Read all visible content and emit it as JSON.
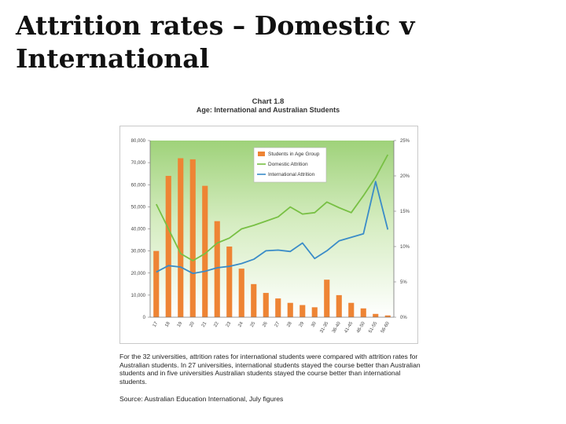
{
  "slide": {
    "title": "Attrition rates – Domestic v International"
  },
  "chart_data": {
    "type": "bar+line",
    "chart_number": "Chart 1.8",
    "title": "Age: International and Australian Students",
    "categories": [
      "17",
      "18",
      "19",
      "20",
      "21",
      "22",
      "23",
      "24",
      "25",
      "26",
      "27",
      "28",
      "29",
      "30",
      "31-35",
      "36-40",
      "41-45",
      "46-50",
      "51-55",
      "56-60"
    ],
    "y_left": {
      "ticks": [
        "0",
        "10,000",
        "20,000",
        "30,000",
        "40,000",
        "50,000",
        "60,000",
        "70,000",
        "80,000"
      ],
      "range": [
        0,
        80000
      ]
    },
    "y_right": {
      "ticks": [
        "0%",
        "5%",
        "10%",
        "15%",
        "20%",
        "25%"
      ],
      "range": [
        0,
        25
      ]
    },
    "series": [
      {
        "name": "Students in Age Group",
        "kind": "bar",
        "axis": "left",
        "color": "#ee8434",
        "values": [
          30000,
          64000,
          72000,
          71500,
          59500,
          43500,
          32000,
          22000,
          15000,
          11000,
          8500,
          6500,
          5500,
          4500,
          17000,
          10000,
          6500,
          4000,
          1500,
          800
        ]
      },
      {
        "name": "Domestic Attrition",
        "kind": "line",
        "axis": "right",
        "color": "#78c044",
        "values": [
          16,
          12.5,
          9,
          8,
          9,
          10.5,
          11.2,
          12.5,
          13,
          13.6,
          14.2,
          15.6,
          14.6,
          14.8,
          16.3,
          15.5,
          14.8,
          17.2,
          19.8,
          23
        ]
      },
      {
        "name": "International Attrition",
        "kind": "line",
        "axis": "right",
        "color": "#3a8cc8",
        "values": [
          6.4,
          7.3,
          7.1,
          6.2,
          6.5,
          7.0,
          7.2,
          7.6,
          8.2,
          9.4,
          9.5,
          9.3,
          10.5,
          8.3,
          9.4,
          10.8,
          11.3,
          11.8,
          19.2,
          12.4
        ]
      }
    ],
    "legend_position": "top-right",
    "grid": false
  },
  "note": "For the 32 universities, attrition rates for international students were compared with attrition rates for Australian students. In 27 universities, international students stayed the course better than Australian students and in five universities Australian students stayed the course better than international students.",
  "source": "Source: Australian Education International, July figures"
}
